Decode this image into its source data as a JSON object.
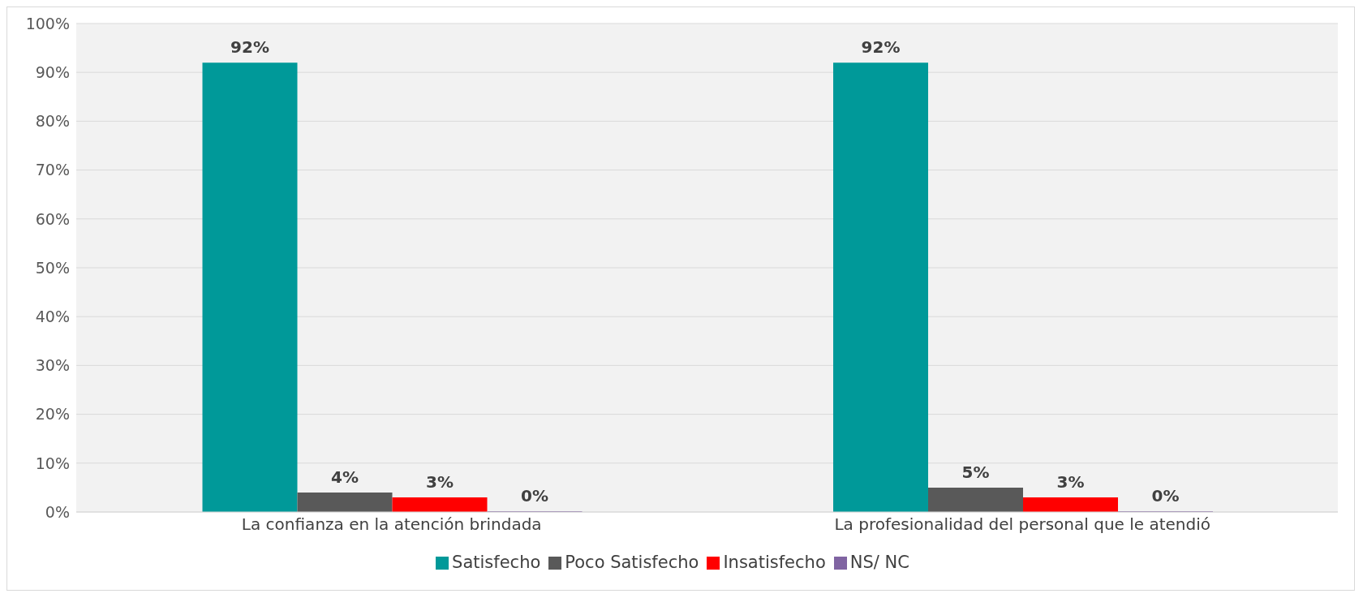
{
  "chart_data": {
    "type": "bar",
    "categories": [
      "La confianza en la atención brindada",
      "La profesionalidad del personal que le atendió"
    ],
    "series": [
      {
        "name": "Satisfecho",
        "color": "#009999",
        "values": [
          92,
          92
        ],
        "value_labels": [
          "92%",
          "92%"
        ]
      },
      {
        "name": "Poco Satisfecho",
        "color": "#595959",
        "values": [
          4,
          5
        ],
        "value_labels": [
          "4%",
          "5%"
        ]
      },
      {
        "name": "Insatisfecho",
        "color": "#ff0000",
        "values": [
          3,
          3
        ],
        "value_labels": [
          "3%",
          "3%"
        ]
      },
      {
        "name": "NS/ NC",
        "color": "#8064a2",
        "values": [
          0,
          0
        ],
        "value_labels": [
          "0%",
          "0%"
        ]
      }
    ],
    "ylim": [
      0,
      100
    ],
    "yticks": [
      {
        "value": 0,
        "label": "0%"
      },
      {
        "value": 10,
        "label": "10%"
      },
      {
        "value": 20,
        "label": "20%"
      },
      {
        "value": 30,
        "label": "30%"
      },
      {
        "value": 40,
        "label": "40%"
      },
      {
        "value": 50,
        "label": "50%"
      },
      {
        "value": 60,
        "label": "60%"
      },
      {
        "value": 70,
        "label": "70%"
      },
      {
        "value": 80,
        "label": "80%"
      },
      {
        "value": 90,
        "label": "90%"
      },
      {
        "value": 100,
        "label": "100%"
      }
    ],
    "grid": "y",
    "legend": "bottom"
  }
}
